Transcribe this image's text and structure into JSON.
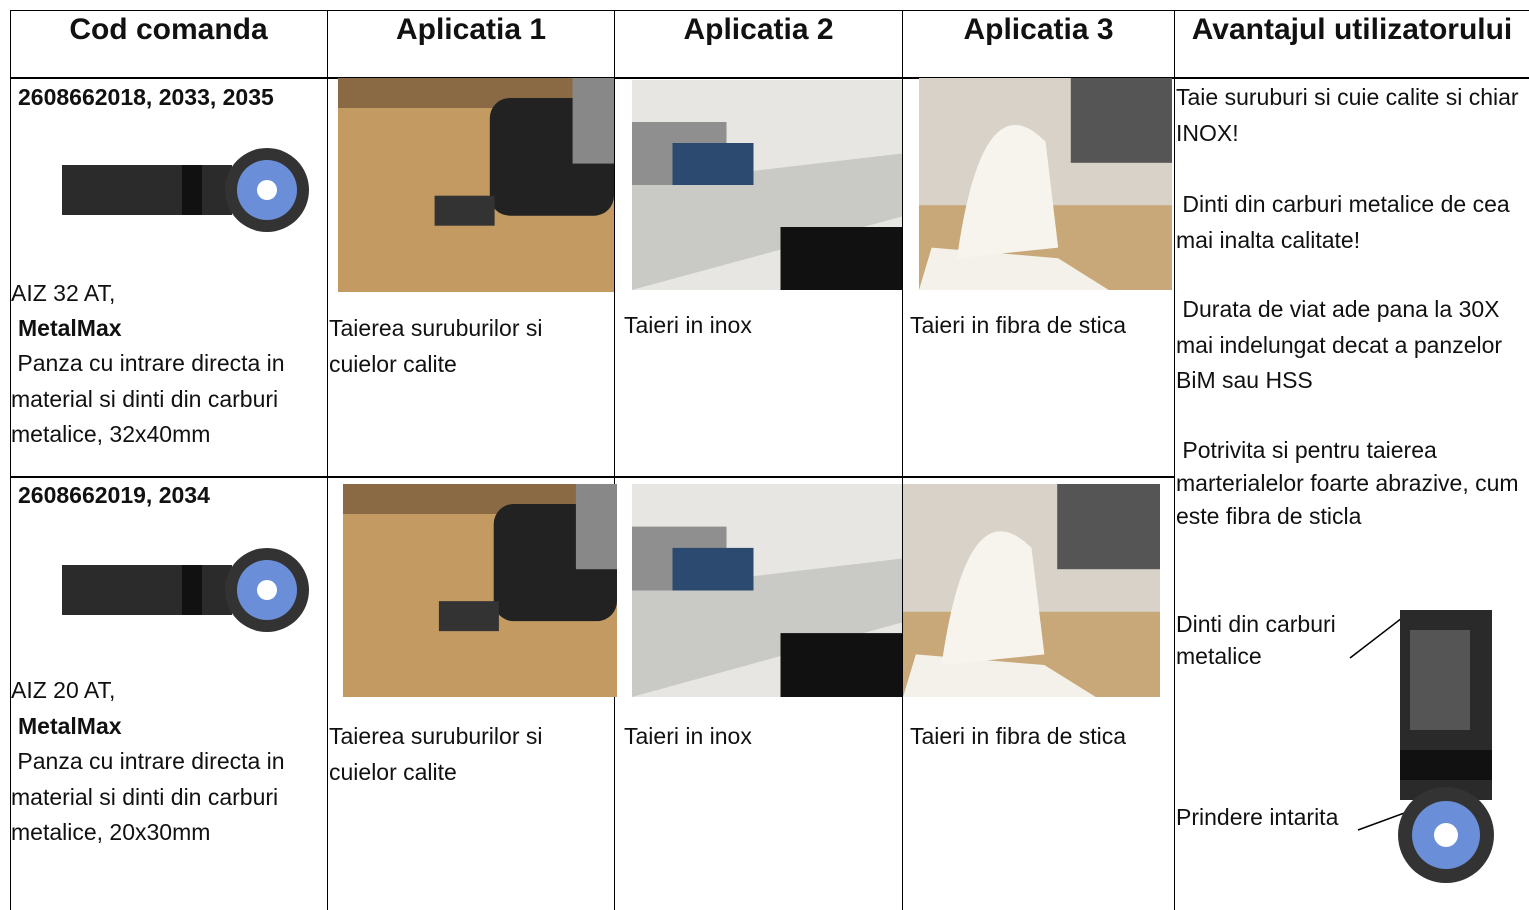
{
  "table": {
    "header": [
      "Cod comanda",
      "Aplicatia 1",
      "Aplicatia 2",
      "Aplicatia 3",
      "Avantajul utilizatorului"
    ],
    "rows": [
      {
        "code": "2608662018, 2033, 2035",
        "model": "AIZ 32 AT,",
        "brand": "MetalMax",
        "description": " Panza cu intrare directa in material si dinti din carburi metalice, 32x40mm",
        "applications": [
          "Taierea suruburilor si cuielor calite",
          "Taieri in inox",
          "Taieri in fibra de stica"
        ]
      },
      {
        "code": "2608662019, 2034",
        "model": "AIZ 20 AT,",
        "brand": "MetalMax",
        "description": " Panza cu intrare directa in material si dinti din carburi metalice, 20x30mm",
        "applications": [
          "Taierea suruburilor si cuielor calite",
          "Taieri in inox",
          "Taieri in fibra de stica"
        ]
      }
    ],
    "advantages": [
      "Taie suruburi si cuie calite si chiar INOX!",
      " Dinti din carburi metalice de cea mai inalta calitate!",
      " Durata de viat ade pana la 30X mai indelungat decat a panzelor BiM sau HSS",
      " Potrivita si pentru taierea marterialelor foarte abrazive, cum este fibra de sticla"
    ],
    "callouts": [
      "Dinti din carburi metalice",
      "Prindere intarita"
    ]
  }
}
